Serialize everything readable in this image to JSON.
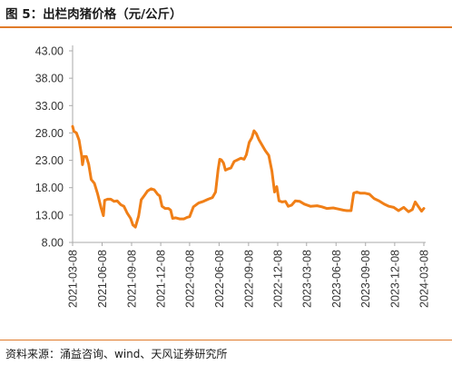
{
  "figure": {
    "title": "图 5：出栏肉猪价格（元/公斤）",
    "source": "资料来源：涌益咨询、wind、天风证券研究所"
  },
  "colors": {
    "accent": "#e07b2a",
    "series": "#f07f17",
    "axis": "#aaaaaa"
  },
  "chart_data": {
    "type": "line",
    "title": "",
    "xlabel": "",
    "ylabel": "",
    "ylim": [
      8,
      43
    ],
    "yticks": [
      "8.00",
      "13.00",
      "18.00",
      "23.00",
      "28.00",
      "33.00",
      "38.00",
      "43.00"
    ],
    "xticks": [
      "2021-03-08",
      "2021-06-08",
      "2021-09-08",
      "2021-12-08",
      "2022-03-08",
      "2022-06-08",
      "2022-09-08",
      "2022-12-08",
      "2023-03-08",
      "2023-06-08",
      "2023-09-08",
      "2023-12-08",
      "2024-03-08"
    ],
    "xlim": [
      "2021-03-08",
      "2024-03-08"
    ],
    "grid": false,
    "legend": "none",
    "series": [
      {
        "name": "",
        "points": [
          [
            "2021-03-08",
            29.2
          ],
          [
            "2021-03-12",
            28.3
          ],
          [
            "2021-03-20",
            28.0
          ],
          [
            "2021-03-28",
            26.7
          ],
          [
            "2021-04-05",
            23.9
          ],
          [
            "2021-04-08",
            22.2
          ],
          [
            "2021-04-12",
            23.7
          ],
          [
            "2021-04-20",
            23.7
          ],
          [
            "2021-04-27",
            22.3
          ],
          [
            "2021-05-05",
            19.5
          ],
          [
            "2021-05-15",
            18.8
          ],
          [
            "2021-05-25",
            16.9
          ],
          [
            "2021-06-05",
            14.3
          ],
          [
            "2021-06-12",
            12.9
          ],
          [
            "2021-06-16",
            15.7
          ],
          [
            "2021-06-25",
            15.9
          ],
          [
            "2021-07-05",
            15.9
          ],
          [
            "2021-07-15",
            15.5
          ],
          [
            "2021-07-25",
            15.6
          ],
          [
            "2021-08-05",
            14.9
          ],
          [
            "2021-08-15",
            14.6
          ],
          [
            "2021-08-25",
            13.4
          ],
          [
            "2021-09-05",
            12.4
          ],
          [
            "2021-09-12",
            11.2
          ],
          [
            "2021-09-20",
            10.8
          ],
          [
            "2021-09-30",
            12.8
          ],
          [
            "2021-10-08",
            15.8
          ],
          [
            "2021-10-18",
            16.6
          ],
          [
            "2021-10-28",
            17.4
          ],
          [
            "2021-11-08",
            17.8
          ],
          [
            "2021-11-18",
            17.6
          ],
          [
            "2021-11-28",
            16.8
          ],
          [
            "2021-12-05",
            16.5
          ],
          [
            "2021-12-12",
            14.6
          ],
          [
            "2021-12-22",
            14.2
          ],
          [
            "2022-01-01",
            14.2
          ],
          [
            "2022-01-08",
            13.9
          ],
          [
            "2022-01-14",
            12.4
          ],
          [
            "2022-01-24",
            12.5
          ],
          [
            "2022-02-05",
            12.3
          ],
          [
            "2022-02-18",
            12.3
          ],
          [
            "2022-03-01",
            12.6
          ],
          [
            "2022-03-08",
            12.7
          ],
          [
            "2022-03-20",
            14.5
          ],
          [
            "2022-04-05",
            15.2
          ],
          [
            "2022-04-20",
            15.5
          ],
          [
            "2022-05-05",
            15.9
          ],
          [
            "2022-05-18",
            16.2
          ],
          [
            "2022-05-28",
            17.2
          ],
          [
            "2022-06-05",
            21.3
          ],
          [
            "2022-06-10",
            23.2
          ],
          [
            "2022-06-15",
            23.1
          ],
          [
            "2022-06-22",
            22.5
          ],
          [
            "2022-06-28",
            21.2
          ],
          [
            "2022-07-05",
            21.4
          ],
          [
            "2022-07-15",
            21.6
          ],
          [
            "2022-07-25",
            22.8
          ],
          [
            "2022-08-05",
            23.1
          ],
          [
            "2022-08-15",
            23.4
          ],
          [
            "2022-08-25",
            23.2
          ],
          [
            "2022-09-01",
            24.0
          ],
          [
            "2022-09-10",
            26.3
          ],
          [
            "2022-09-18",
            27.1
          ],
          [
            "2022-09-25",
            28.4
          ],
          [
            "2022-10-02",
            27.9
          ],
          [
            "2022-10-10",
            26.8
          ],
          [
            "2022-10-20",
            25.8
          ],
          [
            "2022-10-30",
            24.8
          ],
          [
            "2022-11-10",
            23.9
          ],
          [
            "2022-11-20",
            21.0
          ],
          [
            "2022-11-28",
            17.2
          ],
          [
            "2022-12-05",
            18.2
          ],
          [
            "2022-12-12",
            15.6
          ],
          [
            "2022-12-22",
            15.4
          ],
          [
            "2023-01-01",
            15.5
          ],
          [
            "2023-01-10",
            14.6
          ],
          [
            "2023-01-20",
            14.8
          ],
          [
            "2023-02-01",
            15.6
          ],
          [
            "2023-02-15",
            15.5
          ],
          [
            "2023-03-01",
            15.0
          ],
          [
            "2023-03-20",
            14.6
          ],
          [
            "2023-04-10",
            14.7
          ],
          [
            "2023-04-25",
            14.5
          ],
          [
            "2023-05-10",
            14.2
          ],
          [
            "2023-05-30",
            14.3
          ],
          [
            "2023-06-15",
            14.1
          ],
          [
            "2023-06-30",
            13.9
          ],
          [
            "2023-07-12",
            13.8
          ],
          [
            "2023-07-25",
            13.8
          ],
          [
            "2023-08-02",
            17.0
          ],
          [
            "2023-08-12",
            17.2
          ],
          [
            "2023-08-22",
            17.0
          ],
          [
            "2023-09-05",
            17.0
          ],
          [
            "2023-09-20",
            16.8
          ],
          [
            "2023-10-05",
            16.0
          ],
          [
            "2023-10-20",
            15.6
          ],
          [
            "2023-11-05",
            15.0
          ],
          [
            "2023-11-20",
            14.6
          ],
          [
            "2023-12-05",
            14.4
          ],
          [
            "2023-12-20",
            13.8
          ],
          [
            "2024-01-05",
            14.4
          ],
          [
            "2024-01-20",
            13.6
          ],
          [
            "2024-02-01",
            14.0
          ],
          [
            "2024-02-10",
            15.4
          ],
          [
            "2024-02-18",
            14.7
          ],
          [
            "2024-02-25",
            14.1
          ],
          [
            "2024-03-01",
            13.7
          ],
          [
            "2024-03-08",
            14.2
          ]
        ]
      }
    ]
  }
}
